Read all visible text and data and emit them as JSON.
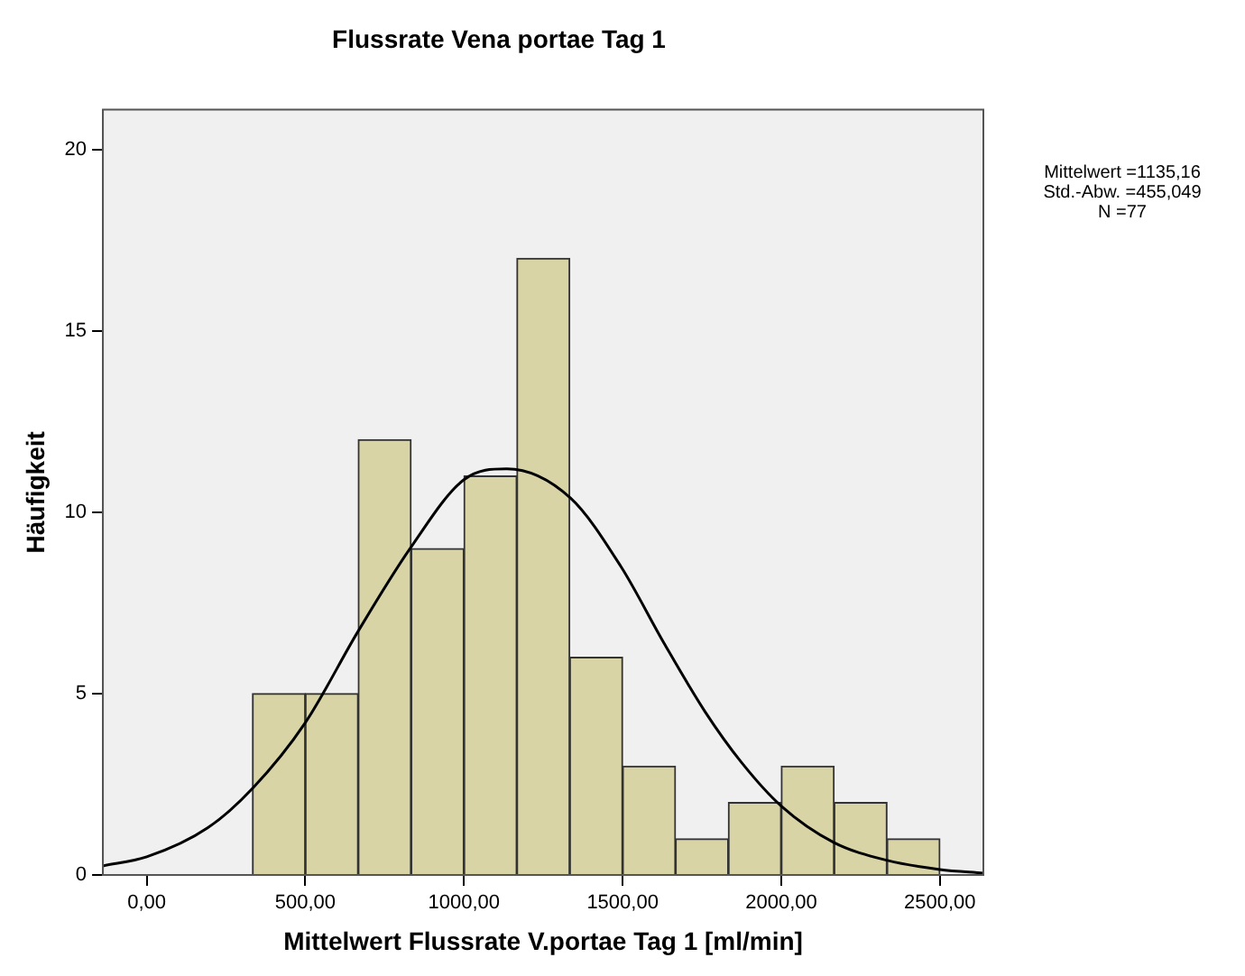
{
  "chart_data": {
    "type": "histogram",
    "title": "Flussrate Vena portae Tag 1",
    "xlabel": "Mittelwert Flussrate V.portae Tag 1 [ml/min]",
    "ylabel": "Häufigkeit",
    "bins": [
      333.3,
      500,
      666.7,
      833.3,
      1000,
      1166.7,
      1333.3,
      1500,
      1666.7,
      1833.3,
      2000,
      2166.7,
      2333.3,
      2500
    ],
    "values": [
      5,
      5,
      12,
      9,
      11,
      17,
      6,
      3,
      1,
      2,
      3,
      2,
      1
    ],
    "color": "#d9d4a6",
    "series": [
      {
        "type": "line",
        "color": "#000000",
        "marker": "none",
        "x": [
          -138,
          0,
          192,
          335,
          500,
          665,
          830,
          1000,
          1135,
          1335,
          1495,
          1630,
          1760,
          1875,
          2000,
          2165,
          2335,
          2500,
          2637
        ],
        "values": [
          0.25,
          0.5,
          1.3,
          2.4,
          4.2,
          6.7,
          9.0,
          10.9,
          11.2,
          10.4,
          8.5,
          6.4,
          4.5,
          3.1,
          1.9,
          0.9,
          0.4,
          0.15,
          0.05
        ]
      }
    ],
    "xlim": [
      -138,
      2637
    ],
    "xticks": [
      {
        "value": 0,
        "label": "0,00"
      },
      {
        "value": 500,
        "label": "500,00"
      },
      {
        "value": 1000,
        "label": "1000,00"
      },
      {
        "value": 1500,
        "label": "1500,00"
      },
      {
        "value": 2000,
        "label": "2000,00"
      },
      {
        "value": 2500,
        "label": "2500,00"
      }
    ],
    "ylim": [
      0,
      21.1
    ],
    "yticks": [
      0,
      5,
      10,
      15,
      20
    ],
    "grid": false,
    "legend": false,
    "annotations": [
      "Mittelwert =1135,16",
      "Std.-Abw. =455,049",
      "N =77"
    ]
  }
}
